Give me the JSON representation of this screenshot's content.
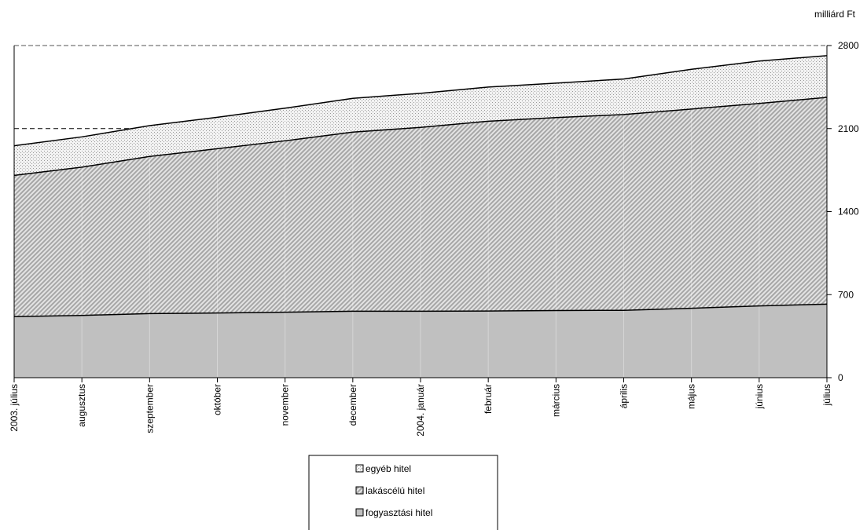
{
  "chart_data": {
    "type": "area",
    "stacked": true,
    "y_unit_label": "milliárd Ft",
    "ylim": [
      0,
      2800
    ],
    "y_ticks": [
      "0",
      "700",
      "1400",
      "2100",
      "2800"
    ],
    "y_axis_position": "right",
    "categories": [
      "2003. július",
      "augusztus",
      "szeptember",
      "október",
      "november",
      "december",
      "2004. január",
      "február",
      "március",
      "április",
      "május",
      "június",
      "július"
    ],
    "reference_line": {
      "y": 2100,
      "style": "dashed",
      "from_category": 0,
      "to_category": 1.7
    },
    "legend_position": "bottom",
    "series": [
      {
        "name": "fogyasztási hitel",
        "pattern": "solid-gray",
        "color": "#c0c0c0",
        "values": [
          515,
          525,
          540,
          545,
          552,
          560,
          560,
          562,
          566,
          568,
          585,
          605,
          620
        ]
      },
      {
        "name": "lakáscélú hitel",
        "pattern": "diagonal-stripes",
        "color": "#b0b0b0",
        "values": [
          1190,
          1250,
          1325,
          1385,
          1445,
          1510,
          1550,
          1600,
          1627,
          1650,
          1680,
          1707,
          1743
        ]
      },
      {
        "name": "egyéb hitel",
        "pattern": "dots",
        "color": "#d8d8d8",
        "values": [
          250,
          255,
          260,
          265,
          275,
          285,
          287,
          288,
          290,
          300,
          335,
          357,
          352
        ]
      }
    ],
    "legend_order": [
      "egyéb hitel",
      "lakáscélú hitel",
      "fogyasztási hitel"
    ]
  }
}
